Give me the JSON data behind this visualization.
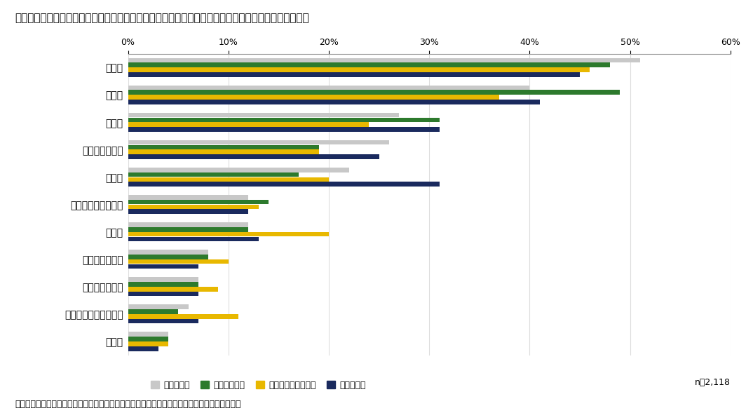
{
  "title": "図５　重視する医薬品の価値（ミクロ視点）：疾患想起の有無、想起疾患による違い（上位３つ回答）",
  "categories": [
    "安全性",
    "有効性",
    "経済性",
    "治療方法の改善",
    "革新性",
    "適切な患者への投与",
    "利便性",
    "社会復帰・復職",
    "介護負担の軽減",
    "医療従事者の負担軽減",
    "生産性"
  ],
  "series": {
    "疾患想起無": [
      51,
      40,
      27,
      26,
      22,
      12,
      12,
      8,
      7,
      6,
      4
    ],
    "想起：高血圧": [
      48,
      49,
      31,
      19,
      17,
      14,
      12,
      8,
      7,
      5,
      4
    ],
    "想起：関節リウマチ": [
      46,
      37,
      24,
      19,
      20,
      13,
      20,
      10,
      9,
      11,
      4
    ],
    "想起：がん": [
      45,
      41,
      31,
      25,
      31,
      12,
      13,
      7,
      7,
      7,
      3
    ]
  },
  "colors": {
    "疾患想起無": "#c8c8c8",
    "想起：高血圧": "#2d7a2d",
    "想起：関節リウマチ": "#e8b800",
    "想起：がん": "#1a2a5e"
  },
  "xlim": [
    0,
    60
  ],
  "xticks": [
    0,
    10,
    20,
    30,
    40,
    50,
    60
  ],
  "note": "n＝2,118",
  "source": "出所：「医薬品の価格や制度、価値に関する意識調査」結果を基に医薬産業政策研究所にて作成",
  "bar_height": 0.17,
  "bar_gap": 0.005
}
